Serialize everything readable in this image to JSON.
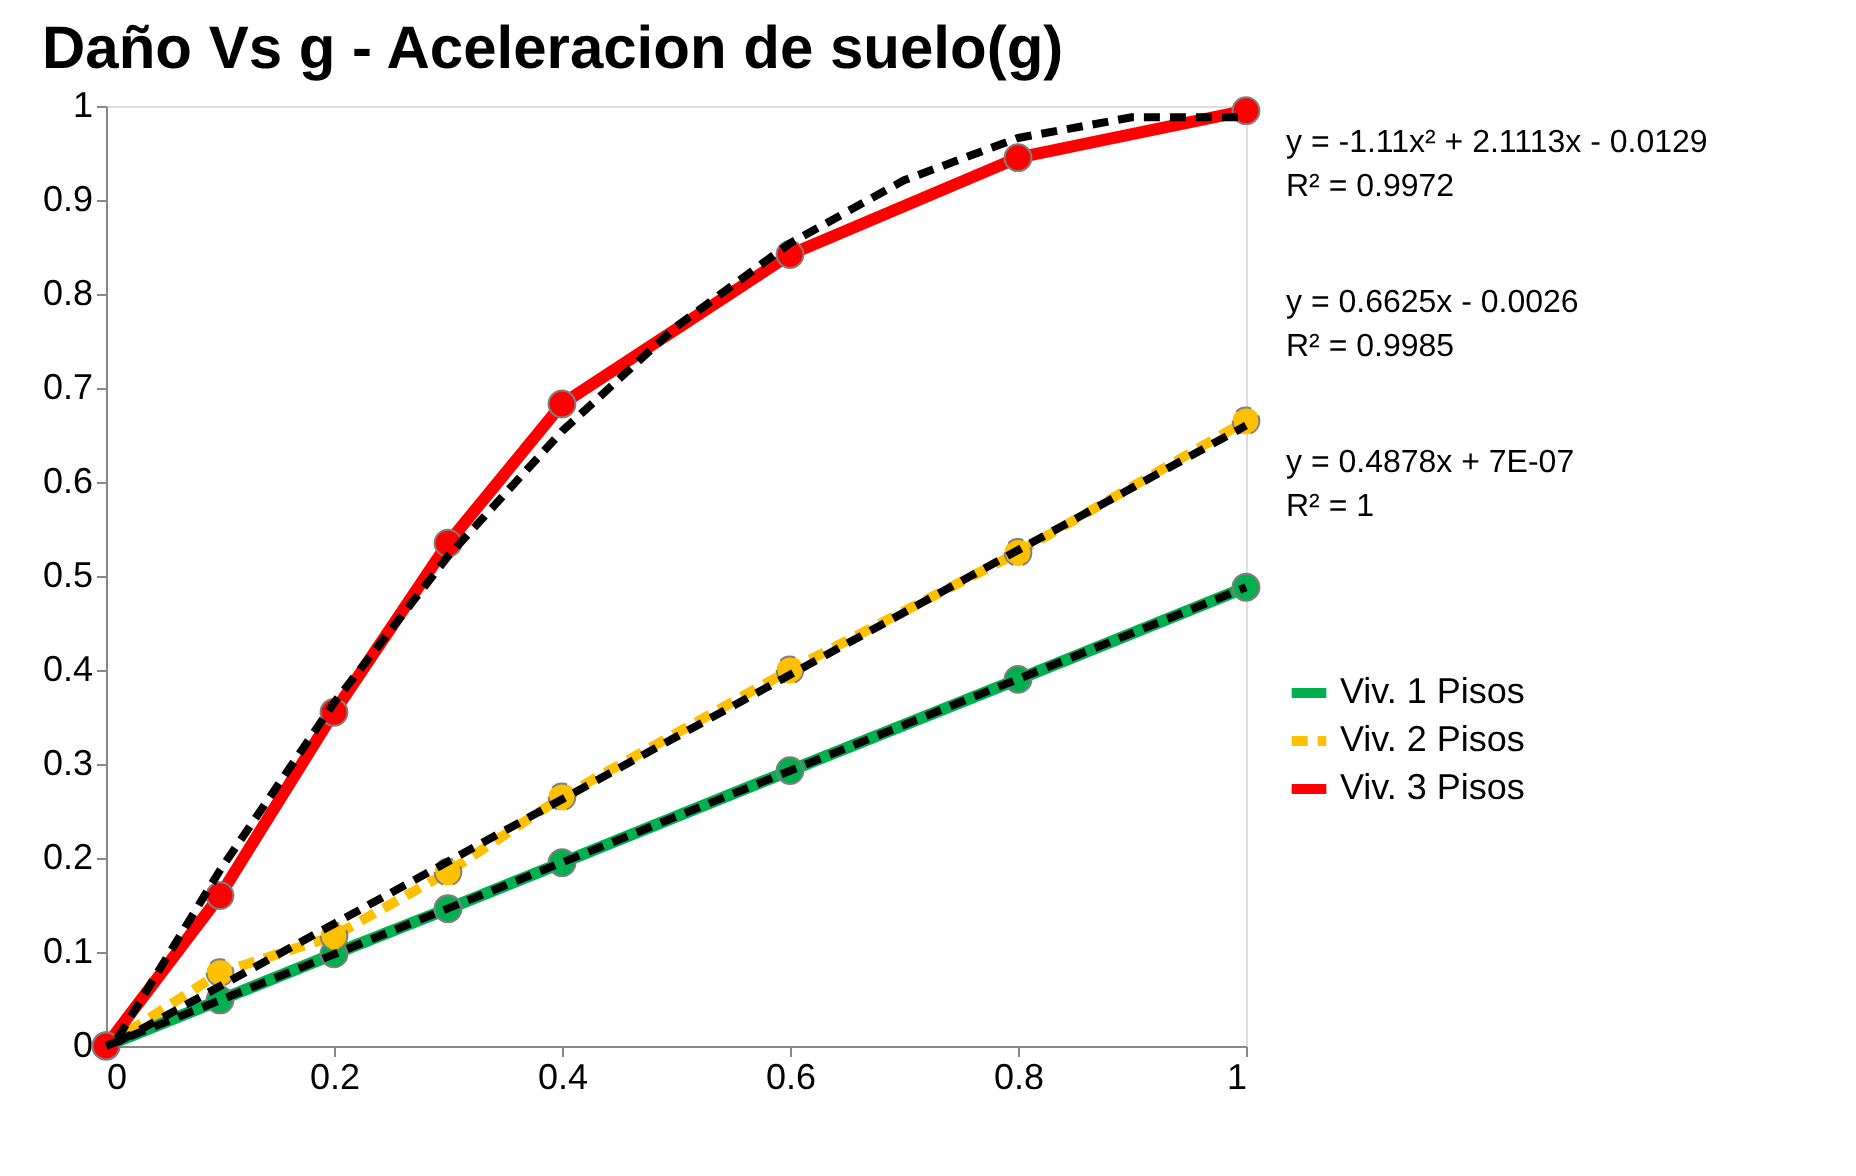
{
  "chart_data": {
    "type": "line",
    "title": "Daño Vs g - Aceleracion de suelo(g)",
    "x": [
      0,
      0.1,
      0.2,
      0.3,
      0.4,
      0.6,
      0.8,
      1
    ],
    "series": [
      {
        "name": "Viv. 1 Pisos",
        "color": "#00b050",
        "line_style": "solid",
        "marker": "circle",
        "values": [
          0,
          0.049,
          0.098,
          0.146,
          0.195,
          0.293,
          0.39,
          0.488
        ]
      },
      {
        "name": "Viv. 2 Pisos",
        "color": "#ffc000",
        "line_style": "dashed",
        "marker": "circle",
        "values": [
          0,
          0.078,
          0.117,
          0.185,
          0.265,
          0.4,
          0.525,
          0.665
        ]
      },
      {
        "name": "Viv. 3 Pisos",
        "color": "#ff0000",
        "line_style": "solid",
        "marker": "circle",
        "values": [
          0,
          0.16,
          0.355,
          0.535,
          0.683,
          0.842,
          0.945,
          0.995
        ]
      },
      {
        "type": "line",
        "color": "#000000",
        "line_style": "dashed",
        "marker": "none",
        "x": [
          0,
          1
        ],
        "values": [
          0,
          0.488
        ]
      },
      {
        "type": "line",
        "color": "#000000",
        "line_style": "dashed",
        "marker": "none",
        "x": [
          0.01,
          1
        ],
        "values": [
          0.004,
          0.66
        ]
      },
      {
        "type": "line",
        "color": "#000000",
        "line_style": "dashed",
        "marker": "none",
        "x": [
          0.01,
          0.1,
          0.2,
          0.3,
          0.4,
          0.5,
          0.6,
          0.7,
          0.8,
          0.9,
          1
        ],
        "values": [
          0.008,
          0.187,
          0.365,
          0.521,
          0.654,
          0.765,
          0.854,
          0.921,
          0.966,
          0.988,
          0.988
        ]
      }
    ],
    "annotations": [
      "y = -1.11x² + 2.1113x - 0.0129\nR² = 0.9972",
      "y = 0.6625x - 0.0026\nR² = 0.9985",
      "y = 0.4878x + 7E-07\nR² = 1"
    ],
    "xlim": [
      0,
      1
    ],
    "xticks": [
      0,
      0.2,
      0.4,
      0.6,
      0.8,
      1
    ],
    "ylim": [
      0,
      1
    ],
    "yticks": [
      0,
      0.1,
      0.2,
      0.3,
      0.4,
      0.5,
      0.6,
      0.7,
      0.8,
      0.9,
      1
    ],
    "grid": false,
    "legend": "right"
  }
}
